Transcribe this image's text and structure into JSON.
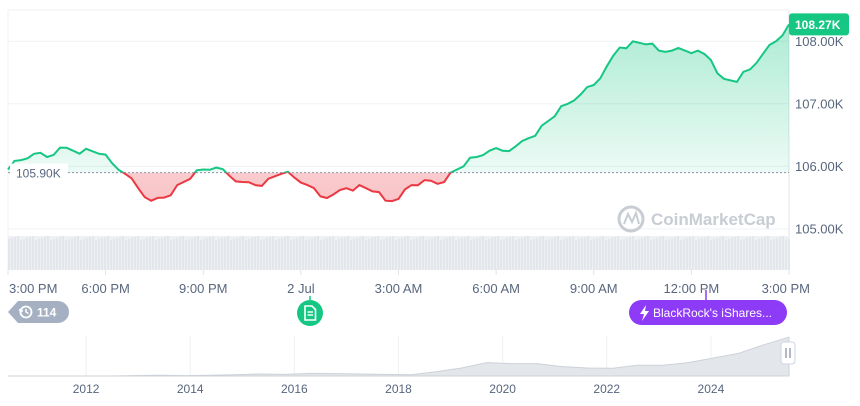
{
  "chart_data": {
    "type": "area",
    "title": "",
    "xlabel": "",
    "ylabel": "",
    "x_ticks": [
      "3:00 PM",
      "6:00 PM",
      "9:00 PM",
      "2 Jul",
      "3:00 AM",
      "6:00 AM",
      "9:00 AM",
      "12:00 PM",
      "3:00 PM"
    ],
    "y_ticks": [
      "105.00K",
      "106.00K",
      "107.00K",
      "108.00K"
    ],
    "y_tick_values": [
      105000,
      106000,
      107000,
      108000
    ],
    "ylim": [
      104950,
      108500
    ],
    "x_range_hours": [
      0,
      24
    ],
    "reference_value": 105900,
    "reference_label": "105.90K",
    "current_value": 108270,
    "current_label": "108.27K",
    "grid": true,
    "colors": {
      "up": "#16c784",
      "down": "#ea3943",
      "badge": "#16c784",
      "event": "#8d3bf7",
      "counter": "#a6b0c3"
    },
    "series": [
      {
        "x": [
          0,
          0.4,
          0.8,
          1.2,
          1.6,
          2,
          2.4,
          2.8,
          3.2,
          3.6,
          4,
          4.4,
          4.8,
          5.2,
          5.6,
          6,
          6.4,
          6.8,
          7.2,
          7.6,
          8,
          8.4,
          8.8,
          9.2,
          9.6,
          10,
          10.4,
          10.8,
          11.2,
          11.6,
          12,
          12.4,
          12.8,
          13.2,
          13.6,
          14,
          14.4,
          14.8,
          15.2,
          15.6,
          16,
          16.4,
          16.8,
          17.2,
          17.6,
          18,
          18.4,
          18.8,
          19.2,
          19.6,
          20,
          20.4,
          20.8,
          21.2,
          21.6,
          22,
          22.4,
          22.8,
          23.2,
          23.6,
          24
        ],
        "values": [
          105950,
          106100,
          106200,
          106150,
          106300,
          106250,
          106280,
          106200,
          106050,
          105880,
          105650,
          105450,
          105500,
          105700,
          105800,
          105950,
          105980,
          105850,
          105750,
          105700,
          105800,
          105880,
          105820,
          105700,
          105520,
          105550,
          105650,
          105700,
          105600,
          105450,
          105480,
          105700,
          105780,
          105720,
          105900,
          106000,
          106150,
          106250,
          106250,
          106320,
          106450,
          106650,
          106800,
          107000,
          107150,
          107300,
          107600,
          107900,
          108000,
          107950,
          107850,
          107850,
          107850,
          107850,
          107700,
          107400,
          107350,
          107550,
          107800,
          108000,
          108270
        ]
      }
    ]
  },
  "markers": {
    "counter_label": "114",
    "event_label": "BlackRock's iShares...",
    "note_icon": "document-icon"
  },
  "watermark": "CoinMarketCap",
  "navigator": {
    "ticks": [
      "2012",
      "2014",
      "2016",
      "2018",
      "2020",
      "2022",
      "2024"
    ],
    "tick_years": [
      2012,
      2014,
      2016,
      2018,
      2020,
      2022,
      2024
    ],
    "year_range": [
      2010.5,
      2025.5
    ],
    "profile": [
      0,
      0,
      0,
      0,
      0,
      0.01,
      0.02,
      0.01,
      0.02,
      0.03,
      0.05,
      0.04,
      0.08,
      0.06,
      0.05,
      0.04,
      0.06,
      0.12,
      0.2,
      0.32,
      0.28,
      0.34,
      0.25,
      0.2,
      0.18,
      0.24,
      0.3,
      0.35,
      0.45,
      0.55,
      0.75,
      1.0
    ],
    "handle_icon": "pause-icon"
  }
}
